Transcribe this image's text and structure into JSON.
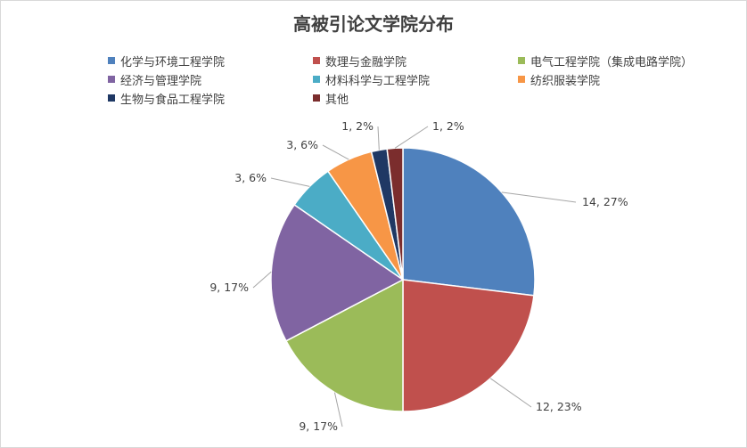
{
  "chart_data": {
    "type": "pie",
    "title": "高被引论文学院分布",
    "categories": [
      "化学与环境工程学院",
      "数理与金融学院",
      "电气工程学院（集成电路学院）",
      "经济与管理学院",
      "材料科学与工程学院",
      "纺织服装学院",
      "生物与食品工程学院",
      "其他"
    ],
    "values": [
      14,
      12,
      9,
      9,
      3,
      3,
      1,
      1
    ],
    "data_labels": [
      "14, 27%",
      "12, 23%",
      "9, 17%",
      "9, 17%",
      "3, 6%",
      "3, 6%",
      "1, 2%",
      "1, 2%"
    ],
    "colors": [
      "#4f81bd",
      "#c0504d",
      "#9bbb59",
      "#8064a2",
      "#4bacc6",
      "#f79646",
      "#1f3864",
      "#7b2d2d"
    ],
    "legend_position": "top"
  }
}
